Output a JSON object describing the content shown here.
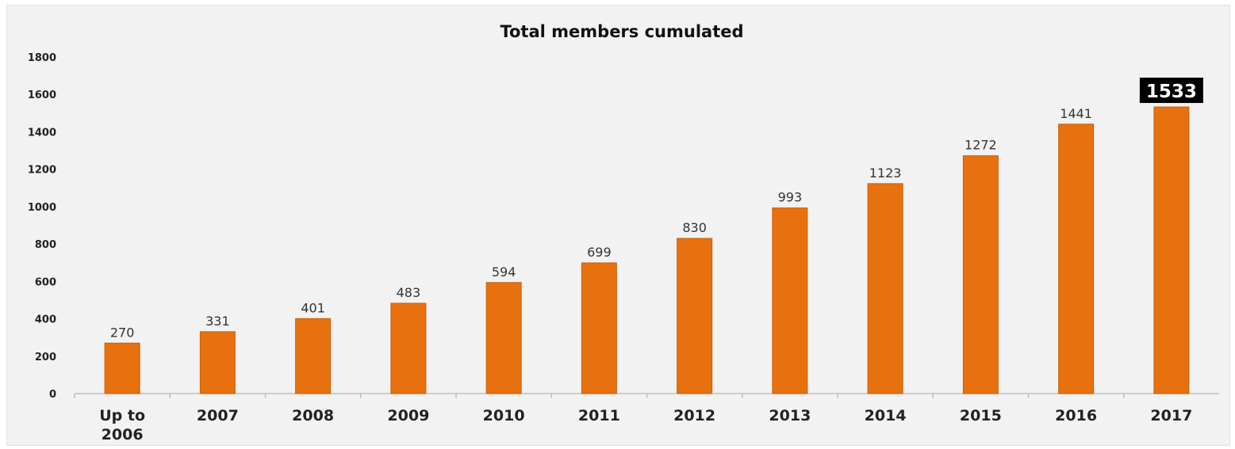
{
  "chart_data": {
    "type": "bar",
    "title": "Total members cumulated",
    "xlabel": "",
    "ylabel": "",
    "ylim": [
      0,
      1800
    ],
    "yticks": [
      0,
      200,
      400,
      600,
      800,
      1000,
      1200,
      1400,
      1600,
      1800
    ],
    "categories": [
      [
        "Up to",
        "2006"
      ],
      [
        "2007"
      ],
      [
        "2008"
      ],
      [
        "2009"
      ],
      [
        "2010"
      ],
      [
        "2011"
      ],
      [
        "2012"
      ],
      [
        "2013"
      ],
      [
        "2014"
      ],
      [
        "2015"
      ],
      [
        "2016"
      ],
      [
        "2017"
      ]
    ],
    "values": [
      270,
      331,
      401,
      483,
      594,
      699,
      830,
      993,
      1123,
      1272,
      1441,
      1533
    ],
    "data_labels": [
      "270",
      "331",
      "401",
      "483",
      "594",
      "699",
      "830",
      "993",
      "1123",
      "1272",
      "1441",
      "1533"
    ],
    "highlighted_index": 11,
    "grid": false,
    "legend": "none",
    "colors": {
      "bar": "#e8710f",
      "bar_edge": "#c9600a",
      "background": "#f2f2f2",
      "axis": "#bfbfbf",
      "highlight_label_bg": "#000000",
      "highlight_label_text": "#ffffff"
    }
  }
}
